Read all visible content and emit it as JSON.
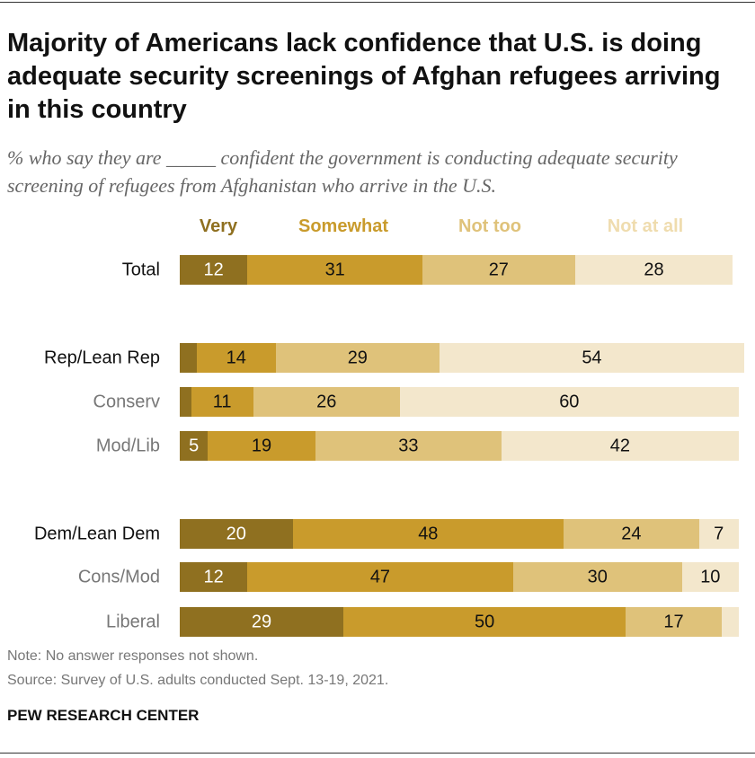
{
  "title": "Majority of Americans lack confidence that U.S. is doing adequate security screenings of Afghan refugees arriving in this country",
  "subtitle": "% who say they are _____ confident the government is conducting adequate security screening of refugees from Afghanistan who arrive in the U.S.",
  "note": "Note: No answer responses not shown.",
  "source": "Source: Survey of U.S. adults conducted Sept. 13-19, 2021.",
  "brand": "PEW RESEARCH CENTER",
  "chart_data": {
    "type": "bar",
    "orientation": "horizontal-stacked",
    "legend_placement": "top",
    "series": [
      {
        "name": "Very",
        "color": "#8f7020"
      },
      {
        "name": "Somewhat",
        "color": "#c99b2c"
      },
      {
        "name": "Not too",
        "color": "#dfc27a"
      },
      {
        "name": "Not at all",
        "color": "#f3e7cc"
      }
    ],
    "categories": [
      {
        "label": "Total",
        "style": "main",
        "values": [
          12,
          31,
          27,
          28
        ]
      },
      {
        "label": "Rep/Lean Rep",
        "style": "main",
        "values": [
          3,
          14,
          29,
          54
        ]
      },
      {
        "label": "Conserv",
        "style": "sub",
        "values": [
          2,
          11,
          26,
          60
        ]
      },
      {
        "label": "Mod/Lib",
        "style": "sub",
        "values": [
          5,
          19,
          33,
          42
        ]
      },
      {
        "label": "Dem/Lean Dem",
        "style": "main",
        "values": [
          20,
          48,
          24,
          7
        ]
      },
      {
        "label": "Cons/Mod",
        "style": "sub",
        "values": [
          12,
          47,
          30,
          10
        ]
      },
      {
        "label": "Liberal",
        "style": "sub",
        "values": [
          29,
          50,
          17,
          3
        ]
      }
    ],
    "xlim": [
      0,
      100
    ],
    "grid": false
  }
}
